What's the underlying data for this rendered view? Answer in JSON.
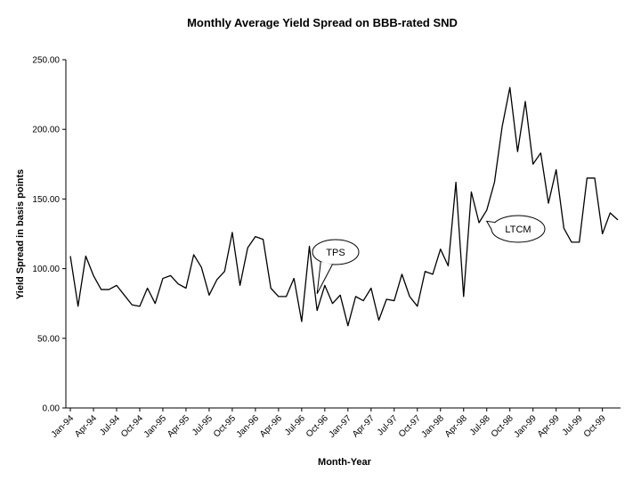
{
  "chart_data": {
    "type": "line",
    "title": "Monthly Average Yield Spread on BBB-rated SND",
    "xlabel": "Month-Year",
    "ylabel": "Yield Spread in basis points",
    "ylim": [
      0,
      250
    ],
    "yticks": [
      "0.00",
      "50.00",
      "100.00",
      "150.00",
      "200.00",
      "250.00"
    ],
    "grid": false,
    "x_tick_labels": [
      "Jan-94",
      "Apr-94",
      "Jul-94",
      "Oct-94",
      "Jan-95",
      "Apr-95",
      "Jul-95",
      "Oct-95",
      "Jan-96",
      "Apr-96",
      "Jul-96",
      "Oct-96",
      "Jan-97",
      "Apr-97",
      "Jul-97",
      "Oct-97",
      "Jan-98",
      "Apr-98",
      "Jul-98",
      "Oct-98",
      "Jan-99",
      "Apr-99",
      "Jul-99",
      "Oct-99"
    ],
    "series": [
      {
        "name": "Yield Spread",
        "values": [
          109,
          73,
          109,
          95,
          85,
          85,
          88,
          81,
          74,
          73,
          86,
          75,
          93,
          95,
          89,
          86,
          110,
          101,
          81,
          92,
          98,
          126,
          88,
          115,
          123,
          121,
          86,
          80,
          80,
          93,
          62,
          116,
          70,
          88,
          75,
          81,
          59,
          80,
          77,
          86,
          63,
          78,
          77,
          96,
          80,
          73,
          98,
          96,
          114,
          102,
          162,
          80,
          155,
          133,
          142,
          162,
          202,
          230,
          184,
          220,
          175,
          183,
          147,
          171,
          129,
          119,
          119,
          165,
          165,
          125,
          140,
          135
        ]
      }
    ],
    "annotations": [
      {
        "label": "TPS",
        "x_index": 32,
        "y": 82
      },
      {
        "label": "LTCM",
        "x_index": 54,
        "y": 134
      }
    ]
  }
}
